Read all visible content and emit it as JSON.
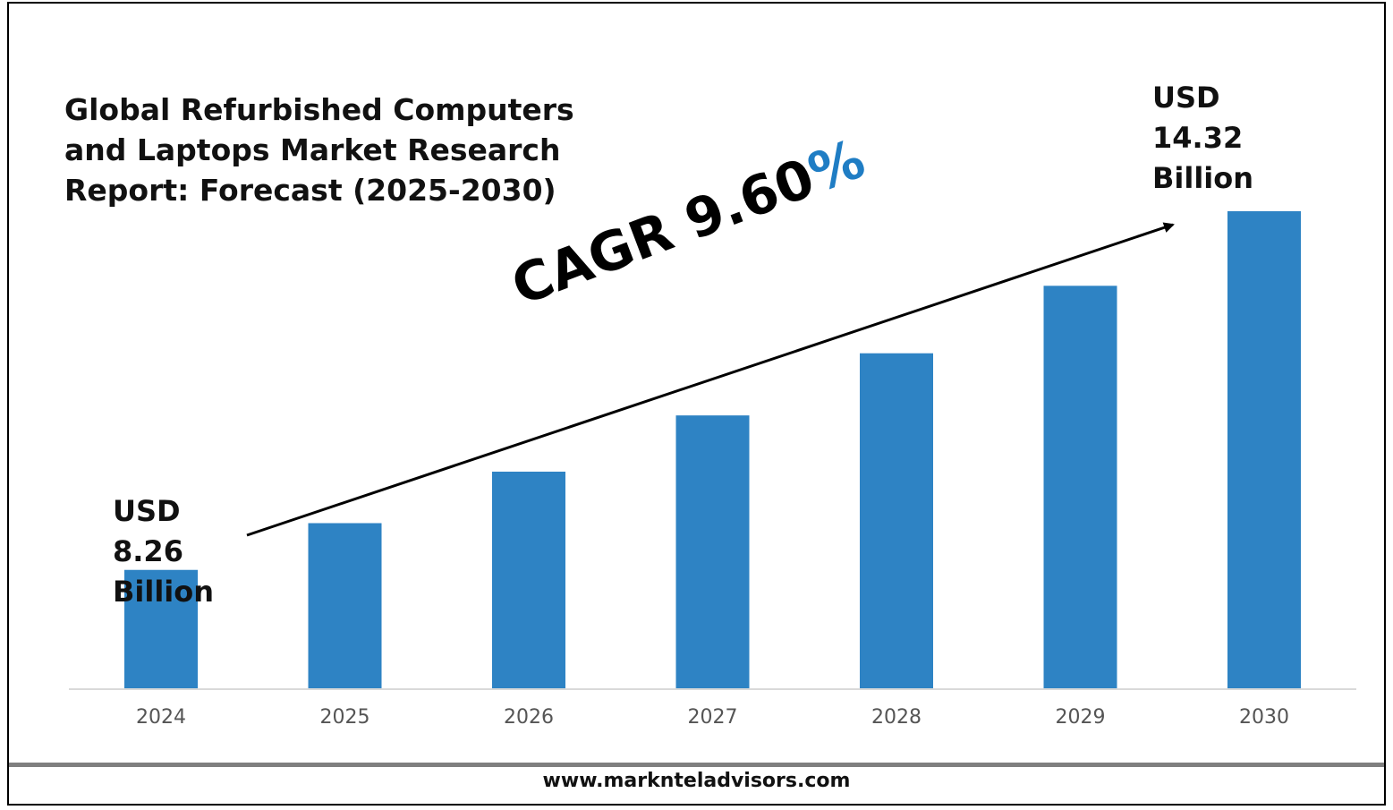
{
  "title": "Global Refurbished Computers and Laptops Market Research Report: Forecast (2025-2030)",
  "start_label": {
    "line1": "USD",
    "line2": "8.26",
    "line3": "Billion"
  },
  "end_label": {
    "line1": "USD",
    "line2": "14.32",
    "line3": "Billion"
  },
  "cagr": {
    "text": "CAGR 9.60",
    "suffix": "%"
  },
  "footer": {
    "url": "www.marknteladvisors.com"
  },
  "colors": {
    "bar": "#2e83c4",
    "cagr_accent": "#1f7dc4",
    "axis": "#d9d9d9",
    "tick_text": "#555555"
  },
  "chart_data": {
    "type": "bar",
    "title": "Global Refurbished Computers and Laptops Market Research Report: Forecast (2025-2030)",
    "categories": [
      "2024",
      "2025",
      "2026",
      "2027",
      "2028",
      "2029",
      "2030"
    ],
    "values": [
      8.26,
      9.05,
      9.92,
      10.87,
      11.92,
      13.06,
      14.32
    ],
    "ylim": [
      6.26,
      14.32
    ],
    "grid": false,
    "legend": "none",
    "annotations": [
      "USD 8.26 Billion",
      "USD 14.32 Billion",
      "CAGR 9.60%"
    ]
  }
}
